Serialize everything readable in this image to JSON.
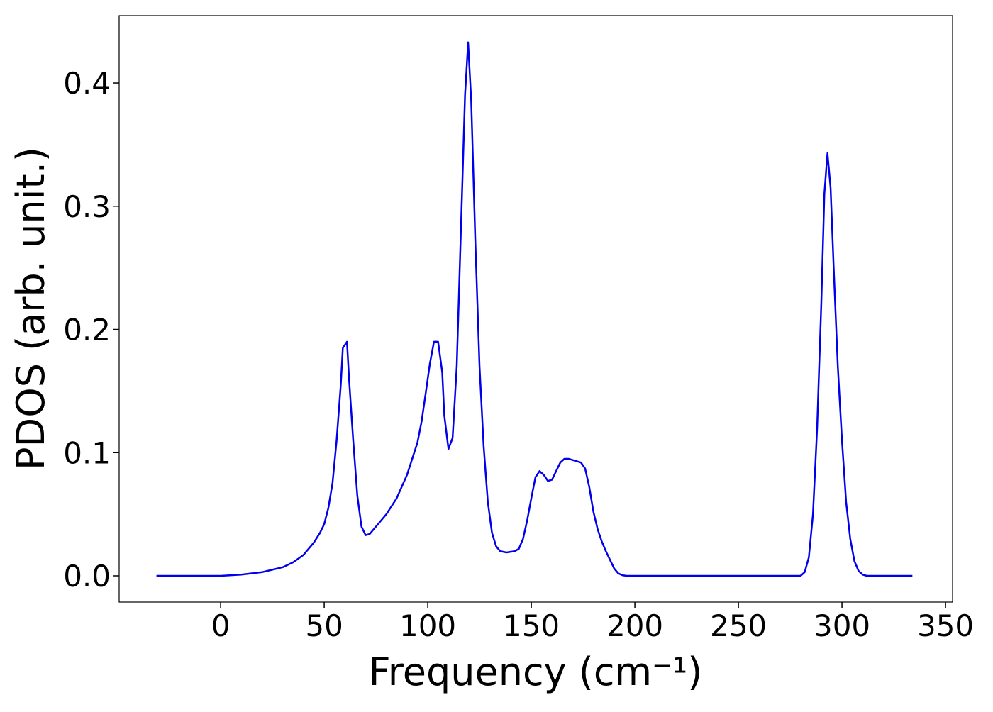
{
  "chart_data": {
    "type": "line",
    "xlabel": "Frequency (cm⁻¹)",
    "ylabel": "PDOS (arb. unit.)",
    "xlim": [
      -49,
      353.4
    ],
    "ylim": [
      -0.0213,
      0.4547
    ],
    "xticks": [
      0,
      50,
      100,
      150,
      200,
      250,
      300,
      350
    ],
    "yticks": [
      {
        "value": 0,
        "label": "0.0"
      },
      0.1,
      0.2,
      0.3,
      0.4
    ],
    "series": [
      {
        "color": "#0000ee",
        "x": [
          -31,
          0,
          10,
          20,
          30,
          35,
          40,
          45,
          48,
          50,
          52,
          54,
          56,
          58,
          59,
          61,
          62,
          64,
          66,
          68,
          70,
          72,
          75,
          80,
          85,
          90,
          95,
          97,
          99,
          101,
          103,
          105,
          107,
          108,
          110,
          112,
          114,
          116,
          118,
          119.5,
          121,
          123,
          125,
          127,
          129,
          131,
          133,
          135,
          138,
          142,
          144,
          146,
          148,
          150,
          152,
          154,
          156,
          158,
          160,
          162,
          164,
          166,
          168,
          170,
          174,
          176,
          178,
          180,
          182,
          184,
          186,
          188,
          190,
          192,
          194,
          196,
          280,
          282,
          284,
          286,
          288,
          290,
          291.5,
          293,
          294.5,
          296,
          298,
          300,
          302,
          304,
          306,
          308,
          310,
          312,
          334
        ],
        "values": [
          0,
          0,
          0.001,
          0.003,
          0.007,
          0.011,
          0.017,
          0.027,
          0.035,
          0.042,
          0.055,
          0.075,
          0.11,
          0.155,
          0.185,
          0.19,
          0.16,
          0.11,
          0.065,
          0.04,
          0.033,
          0.034,
          0.04,
          0.05,
          0.063,
          0.082,
          0.108,
          0.125,
          0.148,
          0.172,
          0.19,
          0.19,
          0.165,
          0.13,
          0.103,
          0.112,
          0.17,
          0.28,
          0.39,
          0.433,
          0.385,
          0.27,
          0.17,
          0.105,
          0.06,
          0.035,
          0.024,
          0.02,
          0.019,
          0.02,
          0.022,
          0.03,
          0.045,
          0.063,
          0.08,
          0.085,
          0.082,
          0.077,
          0.078,
          0.085,
          0.092,
          0.095,
          0.095,
          0.094,
          0.092,
          0.087,
          0.072,
          0.052,
          0.038,
          0.028,
          0.02,
          0.013,
          0.006,
          0.002,
          0.0005,
          0,
          0,
          0.003,
          0.015,
          0.05,
          0.12,
          0.22,
          0.31,
          0.343,
          0.315,
          0.25,
          0.17,
          0.11,
          0.06,
          0.03,
          0.012,
          0.004,
          0.001,
          0,
          0
        ]
      }
    ]
  }
}
